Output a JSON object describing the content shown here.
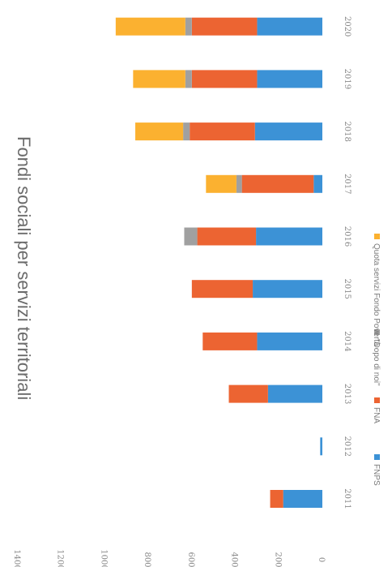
{
  "chart_data": {
    "type": "bar",
    "orientation": "horizontal",
    "stacked": true,
    "rotated": "90deg-clockwise",
    "title": "Fondi sociali per servizi territoriali",
    "categories": [
      "2011",
      "2012",
      "2013",
      "2014",
      "2015",
      "2016",
      "2017",
      "2018",
      "2019",
      "2020"
    ],
    "xlim": [
      0,
      1400
    ],
    "ticks": [
      "0",
      "200",
      "400",
      "600",
      "800",
      "1000",
      "1200",
      "1400"
    ],
    "series": [
      {
        "name": "FNPS",
        "color": "#3c92d6",
        "values": [
          180,
          10,
          250,
          300,
          320,
          305,
          40,
          310,
          300,
          300
        ]
      },
      {
        "name": "FNA",
        "color": "#ec6432",
        "values": [
          60,
          0,
          180,
          250,
          280,
          270,
          330,
          300,
          300,
          300
        ]
      },
      {
        "name": "\"Dopo di noi\"",
        "color": "#a0a0a0",
        "values": [
          0,
          0,
          0,
          0,
          0,
          60,
          25,
          30,
          30,
          30
        ]
      },
      {
        "name": "Quota servizi Fondo Povertà",
        "color": "#fbb130",
        "values": [
          0,
          0,
          0,
          0,
          0,
          0,
          140,
          220,
          240,
          320
        ]
      }
    ],
    "legend_position": "bottom",
    "grid": false
  }
}
